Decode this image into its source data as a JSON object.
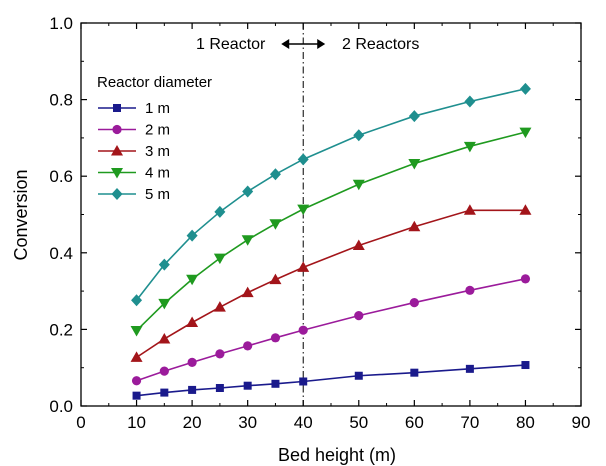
{
  "chart_data": {
    "type": "line",
    "xlabel": "Bed height (m)",
    "ylabel": "Conversion",
    "xlim": [
      0,
      90
    ],
    "ylim": [
      0.0,
      1.0
    ],
    "xticks": [
      "0",
      "10",
      "20",
      "30",
      "40",
      "50",
      "60",
      "70",
      "80",
      "90"
    ],
    "yticks": [
      "0.0",
      "0.2",
      "0.4",
      "0.6",
      "0.8",
      "1.0"
    ],
    "x": [
      10,
      15,
      20,
      25,
      30,
      35,
      40,
      50,
      60,
      70,
      80
    ],
    "legend_title": "Reactor diameter",
    "legend_position": "top-left",
    "divider_x": 40,
    "annotation_left": "1 Reactor",
    "annotation_right": "2 Reactors",
    "series": [
      {
        "name": "1 m",
        "color": "#1a1a8c",
        "marker": "square",
        "values": [
          0.027,
          0.035,
          0.042,
          0.047,
          0.053,
          0.058,
          0.064,
          0.079,
          0.087,
          0.097,
          0.107
        ]
      },
      {
        "name": "2 m",
        "color": "#9b1b9b",
        "marker": "circle",
        "values": [
          0.066,
          0.091,
          0.114,
          0.136,
          0.157,
          0.178,
          0.198,
          0.236,
          0.27,
          0.302,
          0.332
        ]
      },
      {
        "name": "3 m",
        "color": "#a3151a",
        "marker": "triangle-up",
        "values": [
          0.127,
          0.175,
          0.218,
          0.258,
          0.296,
          0.33,
          0.362,
          0.419,
          0.468,
          0.511,
          0.511
        ]
      },
      {
        "name": "4 m",
        "color": "#1f9a1f",
        "marker": "triangle-down",
        "values": [
          0.197,
          0.268,
          0.331,
          0.386,
          0.434,
          0.476,
          0.514,
          0.579,
          0.633,
          0.678,
          0.715
        ]
      },
      {
        "name": "5 m",
        "color": "#1f8f8f",
        "marker": "diamond",
        "values": [
          0.276,
          0.369,
          0.445,
          0.507,
          0.56,
          0.605,
          0.644,
          0.707,
          0.757,
          0.795,
          0.828
        ]
      }
    ]
  }
}
